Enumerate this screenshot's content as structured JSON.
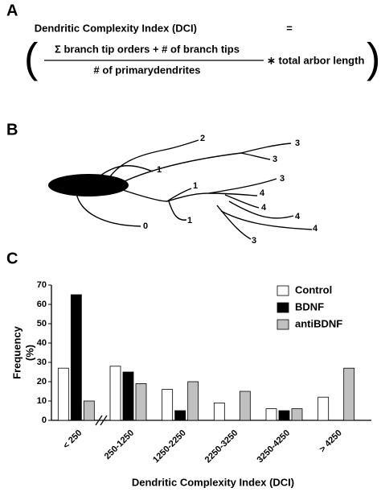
{
  "panels": {
    "a": "A",
    "b": "B",
    "c": "C"
  },
  "formula": {
    "lhs": "Dendritic Complexity Index (DCI)",
    "equals": "=",
    "numerator": "Σ branch tip orders + # of branch tips",
    "denominator": "# of primarydendrites",
    "times": "∗ total arbor length"
  },
  "diagram": {
    "tip_labels": [
      "2",
      "3",
      "1",
      "3",
      "1",
      "3",
      "4",
      "4",
      "4",
      "4",
      "0",
      "1",
      "3"
    ]
  },
  "chart_data": {
    "type": "bar",
    "y_label": "Frequency",
    "y_label_unit": "(%)",
    "x_label": "Dendritic Complexity Index (DCI)",
    "categories": [
      "< 250",
      "250-1250",
      "1250-2250",
      "2250-3250",
      "3250-4250",
      "> 4250"
    ],
    "series": [
      {
        "name": "Control",
        "color": "#ffffff",
        "values": [
          27,
          28,
          16,
          9,
          6,
          12
        ]
      },
      {
        "name": "BDNF",
        "color": "#000000",
        "values": [
          65,
          25,
          5,
          0,
          5,
          0
        ]
      },
      {
        "name": "antiBDNF",
        "color": "#c0c0c0",
        "values": [
          10,
          19,
          20,
          15,
          6,
          27
        ]
      }
    ],
    "ylim": [
      0,
      70
    ],
    "yticks": [
      0,
      10,
      20,
      30,
      40,
      50,
      60,
      70
    ],
    "legend": "top-right",
    "grid": false
  }
}
